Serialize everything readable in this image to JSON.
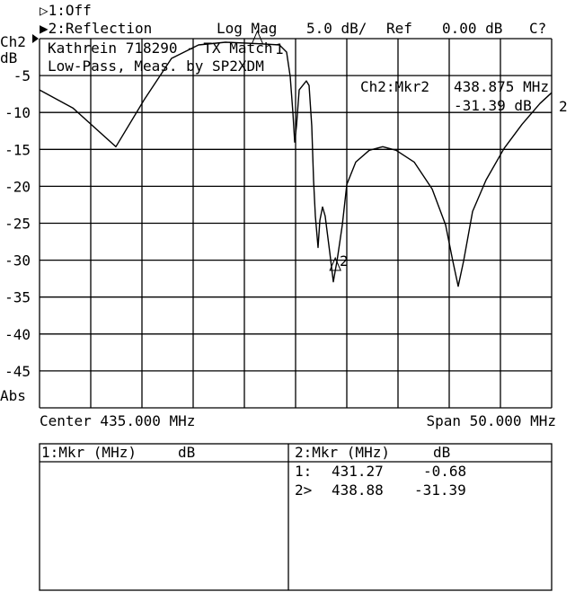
{
  "header": {
    "channel1": "▷1:Off",
    "channel2": "▶2:Reflection",
    "format": "Log Mag",
    "scale": "5.0 dB/",
    "ref_label": "Ref",
    "ref_value": "0.00 dB",
    "cal_status": "C?"
  },
  "axis": {
    "channel_label": "Ch2",
    "unit_label": "dB",
    "bottom_label": "Abs",
    "center": "Center 435.000 MHz",
    "span": "Span 50.000 MHz"
  },
  "annotation": {
    "line1": "Kathrein 718290 - TX Match",
    "line2": "Low-Pass, Meas. by SP2XDM"
  },
  "active_marker": {
    "label": "Ch2:Mkr2",
    "freq": "438.875 MHz",
    "value": "-31.39 dB"
  },
  "trace_end_label": "2",
  "marker_table": {
    "left_header": {
      "mkr": "1:Mkr (MHz)",
      "unit": "dB"
    },
    "right_header": {
      "mkr": "2:Mkr (MHz)",
      "unit": "dB"
    },
    "rows": [
      {
        "id": "1:",
        "freq": "431.27",
        "value": "-0.68"
      },
      {
        "id": "2>",
        "freq": "438.88",
        "value": "-31.39"
      }
    ]
  },
  "chart_data": {
    "type": "line",
    "title": "",
    "xlabel": "",
    "ylabel": "dB",
    "xlim": [
      410,
      460
    ],
    "ylim": [
      -50,
      0
    ],
    "x_divisions": 10,
    "y_divisions": 10,
    "grid": true,
    "y_tick_values": [
      -5,
      -10,
      -15,
      -20,
      -25,
      -30,
      -35,
      -40,
      -45
    ],
    "y_tick_labels": [
      "-5",
      "-10",
      "-15",
      "-20",
      "-25",
      "-30",
      "-35",
      "-40",
      "-45"
    ],
    "series": [
      {
        "x": [
          410.0,
          413.25,
          417.46,
          420.26,
          422.89,
          425.53,
          428.16,
          431.27,
          433.42,
          434.12,
          434.47,
          434.74,
          434.91,
          435.09,
          435.35,
          436.05,
          436.32,
          436.58,
          436.75,
          436.93,
          437.19,
          437.37,
          437.63,
          437.89,
          438.33,
          438.68,
          438.875,
          439.04,
          439.56,
          440.0,
          440.88,
          442.19,
          443.51,
          444.82,
          446.58,
          448.33,
          449.65,
          450.35,
          450.88,
          451.4,
          452.28,
          453.6,
          455.35,
          457.11,
          458.86,
          460.0
        ],
        "y": [
          -6.95,
          -9.39,
          -14.63,
          -8.17,
          -2.68,
          -0.85,
          -0.49,
          -0.68,
          -0.85,
          -1.83,
          -5.12,
          -10.0,
          -14.02,
          -11.83,
          -6.95,
          -5.73,
          -6.34,
          -11.83,
          -19.15,
          -24.02,
          -28.29,
          -24.63,
          -22.8,
          -24.02,
          -28.9,
          -32.93,
          -31.39,
          -30.12,
          -25.24,
          -19.76,
          -16.71,
          -15.12,
          -14.63,
          -15.12,
          -16.71,
          -20.37,
          -25.24,
          -30.12,
          -33.54,
          -30.12,
          -23.41,
          -19.15,
          -14.88,
          -11.59,
          -8.78,
          -7.32
        ]
      }
    ],
    "markers": [
      {
        "label": "1",
        "x": 431.27,
        "y": -0.68
      },
      {
        "label": "2",
        "x": 438.875,
        "y": -31.39,
        "active": true
      }
    ]
  }
}
